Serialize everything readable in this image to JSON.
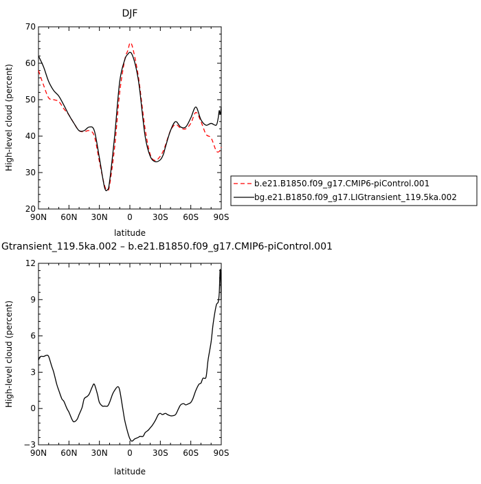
{
  "chart_data": [
    {
      "type": "line",
      "title": "DJF",
      "xlabel": "latitude",
      "ylabel": "High-level cloud (percent)",
      "xlim": [
        90,
        -90
      ],
      "ylim": [
        20,
        70
      ],
      "xticks": [
        90,
        60,
        30,
        0,
        -30,
        -60,
        -90
      ],
      "xtick_labels": [
        "90N",
        "60N",
        "30N",
        "0",
        "30S",
        "60S",
        "90S"
      ],
      "yticks": [
        20,
        30,
        40,
        50,
        60,
        70
      ],
      "ytick_labels": [
        "20",
        "30",
        "40",
        "50",
        "60",
        "70"
      ],
      "legend_position": "right",
      "series": [
        {
          "name": "b.e21.B1850.f09_g17.CMIP6-piControl.001",
          "color": "#ff0000",
          "dash": "dashed",
          "x": [
            90,
            85,
            80,
            75,
            70,
            65,
            60,
            55,
            50,
            45,
            40,
            35,
            30,
            25,
            22,
            20,
            15,
            10,
            5,
            2,
            0,
            -2,
            -5,
            -8,
            -10,
            -15,
            -20,
            -25,
            -30,
            -33,
            -35,
            -40,
            -45,
            -50,
            -55,
            -60,
            -65,
            -70,
            -75,
            -80,
            -85,
            -88,
            -90
          ],
          "y": [
            58,
            54,
            50.5,
            50,
            49.5,
            47.5,
            45.8,
            43.5,
            41.5,
            41.2,
            41.5,
            40,
            33,
            26.5,
            25.3,
            26.5,
            37,
            52,
            61,
            63.5,
            65.5,
            65,
            61.5,
            57,
            53,
            42,
            35,
            33.3,
            34.5,
            36,
            37.5,
            41.5,
            43.2,
            42.2,
            42,
            43.5,
            46.5,
            44,
            40.5,
            39.5,
            36,
            35.8,
            37
          ]
        },
        {
          "name": "bg.e21.B1850.f09_g17.LIGtransient_119.5ka.002",
          "color": "#000000",
          "dash": "solid",
          "x": [
            90,
            85,
            80,
            75,
            70,
            65,
            60,
            55,
            50,
            45,
            40,
            35,
            30,
            25,
            22,
            20,
            15,
            10,
            5,
            2,
            0,
            -2,
            -5,
            -8,
            -10,
            -15,
            -20,
            -25,
            -30,
            -33,
            -35,
            -40,
            -45,
            -50,
            -55,
            -60,
            -65,
            -70,
            -75,
            -80,
            -85,
            -87,
            -88,
            -89,
            -90
          ],
          "y": [
            62,
            59,
            55,
            52.5,
            51,
            48.5,
            45.8,
            43.5,
            41.5,
            41.5,
            42.5,
            41.5,
            34,
            26,
            25.3,
            27.5,
            40,
            55,
            61,
            62.5,
            63,
            62.5,
            60,
            56,
            52,
            40,
            34.5,
            33,
            33.5,
            35,
            37,
            41.5,
            44,
            42.5,
            42.5,
            45,
            48,
            44.5,
            43,
            43.5,
            43,
            45,
            47,
            46,
            48
          ]
        }
      ]
    },
    {
      "type": "line",
      "title": "Gtransient_119.5ka.002 – b.e21.B1850.f09_g17.CMIP6-piControl.001",
      "xlabel": "latitude",
      "ylabel": "High-level cloud (percent)",
      "xlim": [
        90,
        -90
      ],
      "ylim": [
        -3,
        12
      ],
      "xticks": [
        90,
        60,
        30,
        0,
        -30,
        -60,
        -90
      ],
      "xtick_labels": [
        "90N",
        "60N",
        "30N",
        "0",
        "30S",
        "60S",
        "90S"
      ],
      "yticks": [
        -3,
        0,
        3,
        6,
        9,
        12
      ],
      "ytick_labels": [
        "−3",
        "0",
        "3",
        "6",
        "9",
        "12"
      ],
      "series": [
        {
          "name": "",
          "color": "#000000",
          "dash": "solid",
          "x": [
            90,
            88,
            85,
            82,
            80,
            77,
            75,
            72,
            70,
            67,
            65,
            62,
            60,
            57,
            55,
            52,
            50,
            47,
            45,
            42,
            40,
            37,
            35,
            32,
            30,
            27,
            25,
            22,
            20,
            17,
            15,
            12,
            10,
            7,
            5,
            2,
            0,
            -2,
            -5,
            -8,
            -10,
            -13,
            -15,
            -18,
            -20,
            -22,
            -25,
            -28,
            -30,
            -32,
            -35,
            -37,
            -40,
            -42,
            -45,
            -48,
            -50,
            -53,
            -55,
            -58,
            -60,
            -62,
            -65,
            -68,
            -70,
            -72,
            -75,
            -77,
            -80,
            -82,
            -85,
            -87,
            -88,
            -89,
            -90
          ],
          "y": [
            4.0,
            4.3,
            4.3,
            4.4,
            4.3,
            3.5,
            3.0,
            2.0,
            1.5,
            0.8,
            0.6,
            0.0,
            -0.3,
            -0.9,
            -1.1,
            -0.9,
            -0.5,
            0.1,
            0.8,
            1.0,
            1.2,
            1.8,
            2.0,
            1.2,
            0.5,
            0.2,
            0.2,
            0.2,
            0.5,
            1.2,
            1.5,
            1.8,
            1.5,
            0.0,
            -1.0,
            -2.0,
            -2.5,
            -2.7,
            -2.5,
            -2.4,
            -2.3,
            -2.3,
            -2.0,
            -1.8,
            -1.6,
            -1.4,
            -1.0,
            -0.5,
            -0.4,
            -0.5,
            -0.4,
            -0.5,
            -0.6,
            -0.6,
            -0.5,
            0.0,
            0.3,
            0.4,
            0.3,
            0.4,
            0.5,
            0.8,
            1.5,
            2.0,
            2.1,
            2.5,
            2.6,
            4.0,
            5.5,
            7.0,
            8.5,
            8.8,
            9.5,
            11.5,
            9.0
          ]
        }
      ]
    }
  ]
}
